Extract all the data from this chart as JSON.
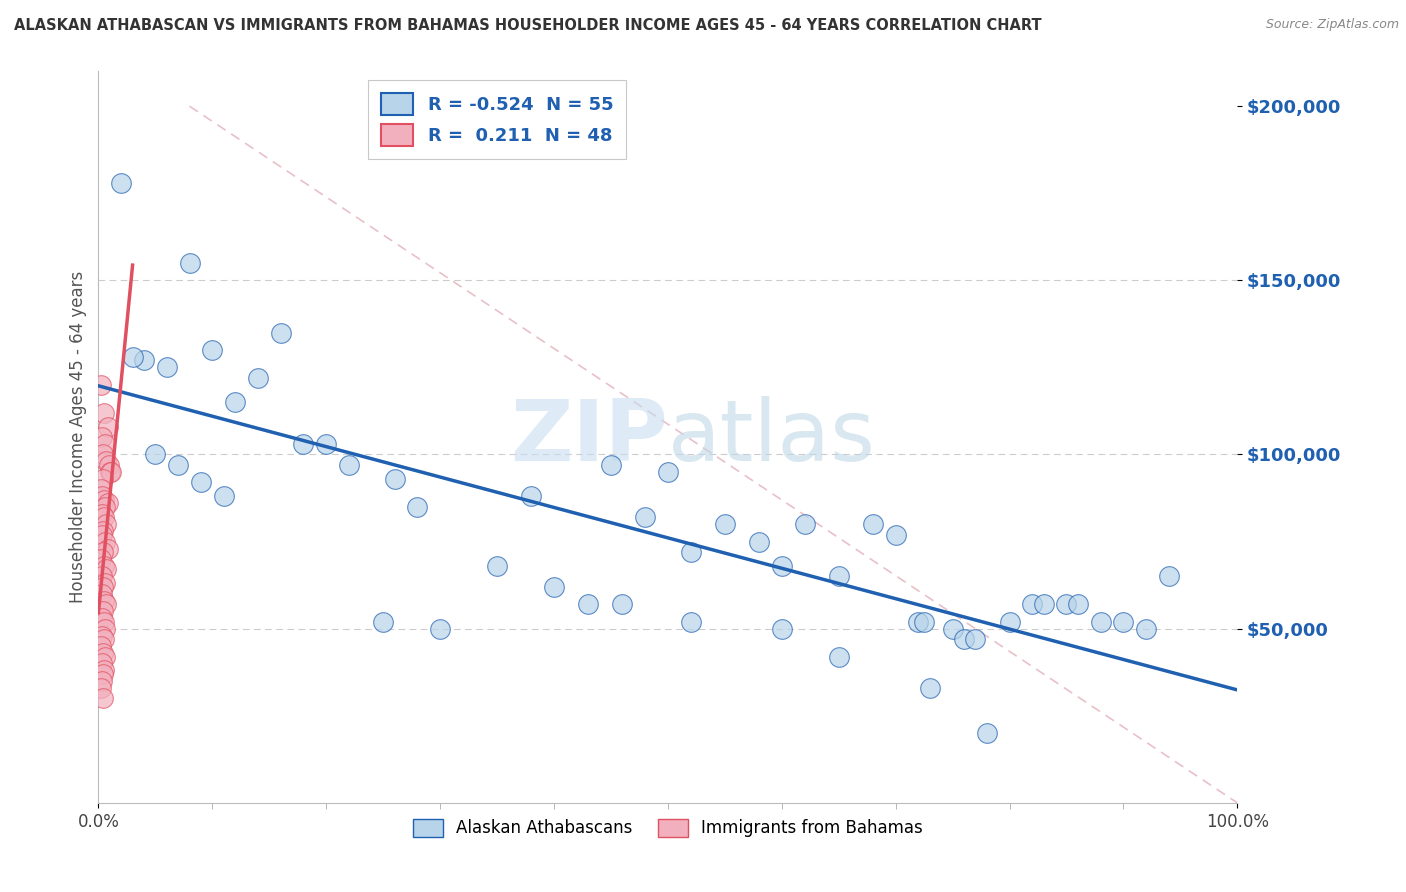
{
  "title": "ALASKAN ATHABASCAN VS IMMIGRANTS FROM BAHAMAS HOUSEHOLDER INCOME AGES 45 - 64 YEARS CORRELATION CHART",
  "source": "Source: ZipAtlas.com",
  "ylabel": "Householder Income Ages 45 - 64 years",
  "r_blue": -0.524,
  "n_blue": 55,
  "r_pink": 0.211,
  "n_pink": 48,
  "blue_color": "#b8d4ea",
  "pink_color": "#f2b0be",
  "line_blue": "#2060b0",
  "line_pink": "#e05060",
  "ref_line_color": "#d0b0b0",
  "grid_color": "#cccccc",
  "blue_scatter": [
    [
      2.0,
      178000
    ],
    [
      8.0,
      155000
    ],
    [
      16.0,
      135000
    ],
    [
      14.0,
      122000
    ],
    [
      10.0,
      130000
    ],
    [
      6.0,
      125000
    ],
    [
      20.0,
      103000
    ],
    [
      4.0,
      127000
    ],
    [
      3.0,
      128000
    ],
    [
      12.0,
      115000
    ],
    [
      18.0,
      103000
    ],
    [
      5.0,
      100000
    ],
    [
      9.0,
      92000
    ],
    [
      7.0,
      97000
    ],
    [
      22.0,
      97000
    ],
    [
      26.0,
      93000
    ],
    [
      11.0,
      88000
    ],
    [
      28.0,
      85000
    ],
    [
      38.0,
      88000
    ],
    [
      45.0,
      97000
    ],
    [
      50.0,
      95000
    ],
    [
      48.0,
      82000
    ],
    [
      55.0,
      80000
    ],
    [
      52.0,
      72000
    ],
    [
      58.0,
      75000
    ],
    [
      60.0,
      68000
    ],
    [
      62.0,
      80000
    ],
    [
      65.0,
      65000
    ],
    [
      68.0,
      80000
    ],
    [
      70.0,
      77000
    ],
    [
      72.0,
      52000
    ],
    [
      72.5,
      52000
    ],
    [
      75.0,
      50000
    ],
    [
      76.0,
      47000
    ],
    [
      77.0,
      47000
    ],
    [
      80.0,
      52000
    ],
    [
      82.0,
      57000
    ],
    [
      83.0,
      57000
    ],
    [
      85.0,
      57000
    ],
    [
      86.0,
      57000
    ],
    [
      88.0,
      52000
    ],
    [
      90.0,
      52000
    ],
    [
      92.0,
      50000
    ],
    [
      94.0,
      65000
    ],
    [
      25.0,
      52000
    ],
    [
      30.0,
      50000
    ],
    [
      35.0,
      68000
    ],
    [
      40.0,
      62000
    ],
    [
      43.0,
      57000
    ],
    [
      46.0,
      57000
    ],
    [
      52.0,
      52000
    ],
    [
      60.0,
      50000
    ],
    [
      65.0,
      42000
    ],
    [
      73.0,
      33000
    ],
    [
      78.0,
      20000
    ]
  ],
  "pink_scatter": [
    [
      0.2,
      120000
    ],
    [
      0.5,
      112000
    ],
    [
      0.8,
      108000
    ],
    [
      0.3,
      105000
    ],
    [
      0.6,
      103000
    ],
    [
      0.4,
      100000
    ],
    [
      0.7,
      98000
    ],
    [
      0.9,
      97000
    ],
    [
      1.0,
      95000
    ],
    [
      1.1,
      95000
    ],
    [
      0.4,
      93000
    ],
    [
      0.2,
      90000
    ],
    [
      0.3,
      88000
    ],
    [
      0.5,
      87000
    ],
    [
      0.8,
      86000
    ],
    [
      0.6,
      85000
    ],
    [
      0.3,
      83000
    ],
    [
      0.5,
      82000
    ],
    [
      0.7,
      80000
    ],
    [
      0.4,
      78000
    ],
    [
      0.3,
      77000
    ],
    [
      0.6,
      75000
    ],
    [
      0.8,
      73000
    ],
    [
      0.4,
      72000
    ],
    [
      0.2,
      70000
    ],
    [
      0.5,
      68000
    ],
    [
      0.7,
      67000
    ],
    [
      0.3,
      65000
    ],
    [
      0.6,
      63000
    ],
    [
      0.4,
      62000
    ],
    [
      0.3,
      60000
    ],
    [
      0.5,
      58000
    ],
    [
      0.7,
      57000
    ],
    [
      0.4,
      55000
    ],
    [
      0.3,
      53000
    ],
    [
      0.5,
      52000
    ],
    [
      0.6,
      50000
    ],
    [
      0.3,
      48000
    ],
    [
      0.5,
      47000
    ],
    [
      0.2,
      45000
    ],
    [
      0.4,
      43000
    ],
    [
      0.6,
      42000
    ],
    [
      0.3,
      40000
    ],
    [
      0.5,
      38000
    ],
    [
      0.4,
      37000
    ],
    [
      0.3,
      35000
    ],
    [
      0.2,
      33000
    ],
    [
      0.4,
      30000
    ]
  ],
  "xlim": [
    0,
    100
  ],
  "ylim": [
    0,
    210000
  ],
  "figwidth": 14.06,
  "figheight": 8.92,
  "dpi": 100
}
